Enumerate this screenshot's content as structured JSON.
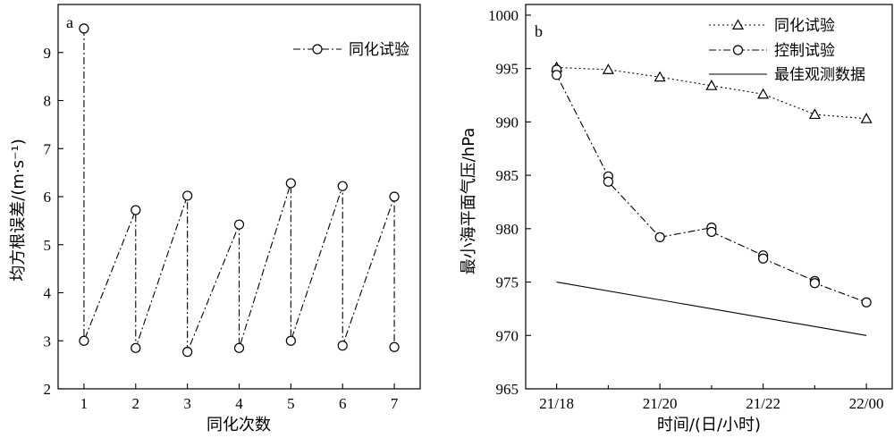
{
  "chart_data": [
    {
      "panel": "a",
      "type": "line",
      "xlabel": "同化次数",
      "ylabel": "均方根误差/(m·s⁻¹)",
      "xlim": [
        0.5,
        7.5
      ],
      "ylim": [
        2,
        10
      ],
      "x_ticks": [
        "1",
        "2",
        "3",
        "4",
        "5",
        "6",
        "7"
      ],
      "y_ticks": [
        "2",
        "3",
        "4",
        "5",
        "6",
        "7",
        "8",
        "9"
      ],
      "series": [
        {
          "name": "同化试验",
          "marker": "circle",
          "line": "dash-dot",
          "color": "#000000",
          "points": [
            [
              1,
              9.5
            ],
            [
              1,
              3.0
            ],
            [
              2,
              5.72
            ],
            [
              2,
              2.85
            ],
            [
              3,
              6.02
            ],
            [
              3,
              2.77
            ],
            [
              4,
              5.42
            ],
            [
              4,
              2.85
            ],
            [
              5,
              6.28
            ],
            [
              5,
              3.0
            ],
            [
              6,
              6.22
            ],
            [
              6,
              2.9
            ],
            [
              7,
              6.0
            ],
            [
              7,
              2.87
            ]
          ]
        }
      ],
      "legend": "top-right"
    },
    {
      "panel": "b",
      "type": "line",
      "xlabel": "时间/(日/小时)",
      "ylabel": "最小海平面气压/hPa",
      "xlim": [
        17.4,
        24.5
      ],
      "ylim": [
        965,
        1001
      ],
      "x_ticks": [
        "21/18",
        "21/20",
        "21/22",
        "22/00"
      ],
      "y_ticks": [
        "965",
        "970",
        "975",
        "980",
        "985",
        "990",
        "995",
        "1000"
      ],
      "series": [
        {
          "name": "同化试验",
          "marker": "triangle",
          "line": "dotted",
          "color": "#000000",
          "points": [
            [
              18,
              995.1
            ],
            [
              19,
              994.9
            ],
            [
              20,
              994.2
            ],
            [
              21,
              993.4
            ],
            [
              22,
              992.6
            ],
            [
              23,
              990.7
            ],
            [
              24,
              990.3
            ]
          ]
        },
        {
          "name": "控制试验",
          "marker": "circle",
          "line": "dash-dot",
          "color": "#000000",
          "points": [
            [
              18,
              994.9
            ],
            [
              18,
              994.4
            ],
            [
              19,
              984.9
            ],
            [
              19,
              984.4
            ],
            [
              20,
              979.2
            ],
            [
              21,
              980.1
            ],
            [
              21,
              979.7
            ],
            [
              22,
              977.5
            ],
            [
              22,
              977.2
            ],
            [
              23,
              975.1
            ],
            [
              23,
              974.9
            ],
            [
              24,
              973.1
            ]
          ]
        },
        {
          "name": "最佳观测数据",
          "marker": "none",
          "line": "solid",
          "color": "#000000",
          "points": [
            [
              18,
              975.0
            ],
            [
              24,
              970.0
            ]
          ]
        }
      ],
      "legend": "top-right"
    }
  ]
}
